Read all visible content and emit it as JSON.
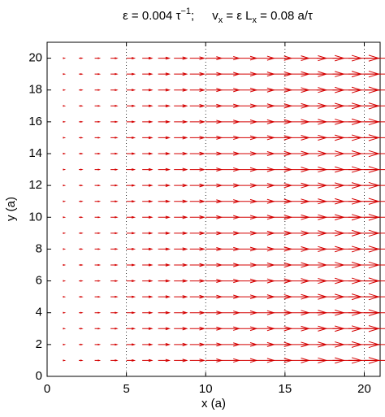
{
  "chart_data": {
    "type": "quiver",
    "title": [
      "ε = 0.004 τ",
      "−1",
      ";",
      "v",
      "x",
      " = ε L",
      "x",
      " = 0.08 a/τ"
    ],
    "x_label": "x (a)",
    "y_label": "y (a)",
    "x": [
      1,
      2,
      3,
      4,
      5,
      6,
      7,
      8,
      9,
      10,
      11,
      12,
      13,
      14,
      15,
      16,
      17,
      18,
      19,
      20
    ],
    "y": [
      1,
      2,
      3,
      4,
      5,
      6,
      7,
      8,
      9,
      10,
      11,
      12,
      13,
      14,
      15,
      16,
      17,
      18,
      19,
      20
    ],
    "u": [
      0.004,
      0.008,
      0.012,
      0.016,
      0.02,
      0.024,
      0.028,
      0.032,
      0.036,
      0.04,
      0.044,
      0.048,
      0.052,
      0.056,
      0.06,
      0.064,
      0.068,
      0.072,
      0.076,
      0.08
    ],
    "color": "#d40000",
    "xlim": [
      0,
      21
    ],
    "ylim": [
      0,
      21
    ],
    "xticks": [
      0,
      5,
      10,
      15,
      20
    ],
    "yticks": [
      0,
      2,
      4,
      6,
      8,
      10,
      12,
      14,
      16,
      18,
      20
    ],
    "grid": "x"
  }
}
